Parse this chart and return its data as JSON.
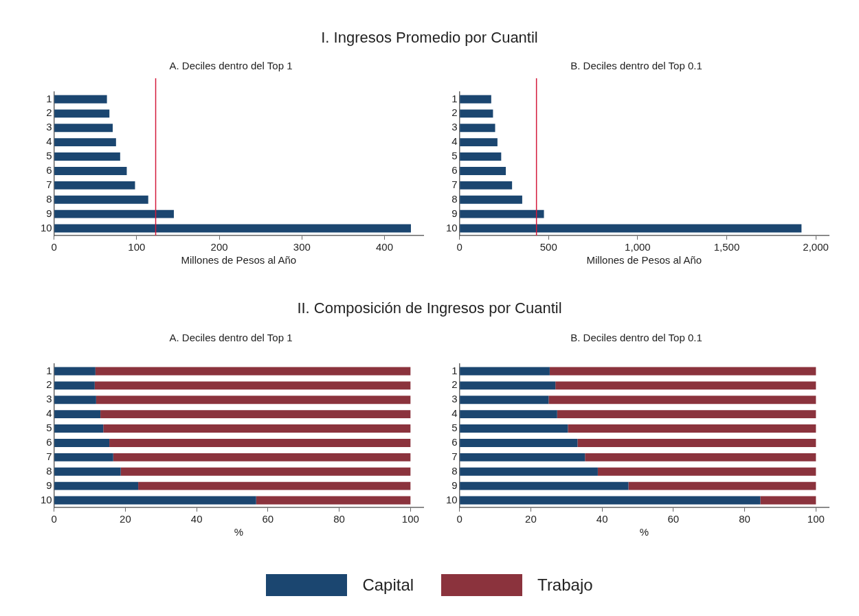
{
  "chart_data": [
    {
      "type": "bar",
      "orientation": "horizontal",
      "title": "I. Ingresos Promedio por Cuantil",
      "subtitle": "A. Deciles dentro del Top 1",
      "xlabel": "Millones de Pesos al Año",
      "categories": [
        "1",
        "2",
        "3",
        "4",
        "5",
        "6",
        "7",
        "8",
        "9",
        "10"
      ],
      "series": [
        {
          "color": "#1b4670",
          "values": [
            64,
            67,
            71,
            75,
            80,
            88,
            98,
            114,
            145,
            432
          ]
        }
      ],
      "xlim": [
        0,
        447
      ],
      "xticks": [
        0,
        100,
        200,
        300,
        400
      ],
      "grid": false,
      "ref_lines": [
        {
          "axis": "x",
          "value": 123,
          "color": "#d3193a"
        }
      ]
    },
    {
      "type": "bar",
      "orientation": "horizontal",
      "subtitle": "B. Deciles dentro del Top 0.1",
      "xlabel": "Millones de Pesos al Año",
      "categories": [
        "1",
        "2",
        "3",
        "4",
        "5",
        "6",
        "7",
        "8",
        "9",
        "10"
      ],
      "series": [
        {
          "color": "#1b4670",
          "values": [
            178,
            188,
            200,
            213,
            234,
            260,
            295,
            352,
            474,
            1920
          ]
        }
      ],
      "xlim": [
        0,
        2073
      ],
      "xticks": [
        0,
        500,
        {
          "value": 1000,
          "label": "1,000"
        },
        {
          "value": 1500,
          "label": "1,500"
        },
        {
          "value": 2000,
          "label": "2,000"
        }
      ],
      "grid": false,
      "ref_lines": [
        {
          "axis": "x",
          "value": 432,
          "color": "#d3193a"
        }
      ]
    },
    {
      "type": "bar",
      "orientation": "horizontal",
      "stacked": true,
      "title": "II. Composición de Ingresos por Cuantil",
      "subtitle": "A. Deciles dentro del Top 1",
      "xlabel": "%",
      "categories": [
        "1",
        "2",
        "3",
        "4",
        "5",
        "6",
        "7",
        "8",
        "9",
        "10"
      ],
      "series": [
        {
          "name": "Capital",
          "color": "#1b4670",
          "values": [
            11.6,
            11.4,
            11.8,
            13,
            13.8,
            15.5,
            16.6,
            18.7,
            23.6,
            56.7
          ]
        },
        {
          "name": "Trabajo",
          "color": "#8b333d",
          "values": [
            88.4,
            88.6,
            88.2,
            87,
            86.2,
            84.5,
            83.4,
            81.3,
            76.4,
            43.3
          ]
        }
      ],
      "xlim": [
        0,
        103.6
      ],
      "xticks": [
        0,
        20,
        40,
        60,
        80,
        100
      ],
      "grid": false,
      "legend": "bottom"
    },
    {
      "type": "bar",
      "orientation": "horizontal",
      "stacked": true,
      "subtitle": "B. Deciles dentro del Top 0.1",
      "xlabel": "%",
      "categories": [
        "1",
        "2",
        "3",
        "4",
        "5",
        "6",
        "7",
        "8",
        "9",
        "10"
      ],
      "series": [
        {
          "color": "#1b4670",
          "values": [
            25.3,
            26.9,
            25,
            27.4,
            30.4,
            33.1,
            35.2,
            38.8,
            47.4,
            84.4
          ]
        },
        {
          "color": "#8b333d",
          "values": [
            74.7,
            73.1,
            75,
            72.6,
            69.6,
            66.9,
            64.8,
            61.2,
            52.6,
            15.6
          ]
        }
      ],
      "xlim": [
        0,
        103.6
      ],
      "xticks": [
        0,
        20,
        40,
        60,
        80,
        100
      ],
      "grid": false
    }
  ]
}
